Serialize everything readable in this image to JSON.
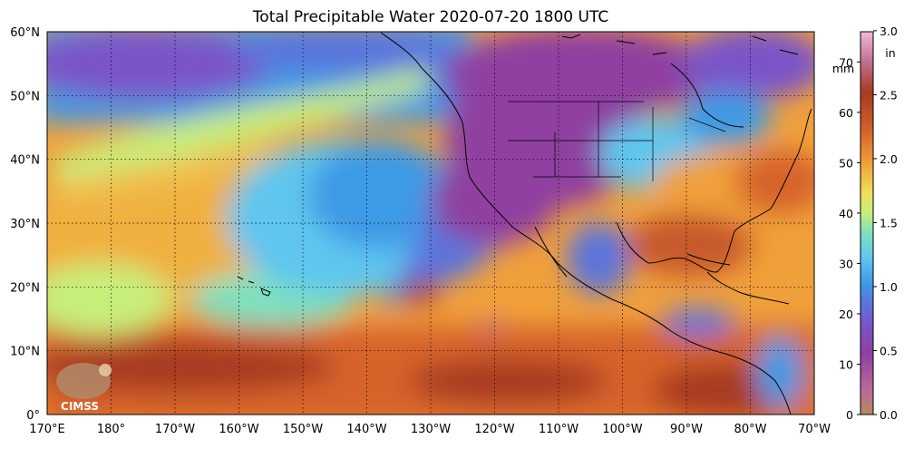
{
  "title": "Total Precipitable Water  2020-07-20 1800 UTC",
  "map": {
    "lon_labels": [
      "170°E",
      "180°",
      "170°W",
      "160°W",
      "150°W",
      "140°W",
      "130°W",
      "120°W",
      "110°W",
      "100°W",
      "90°W",
      "80°W",
      "70°W"
    ],
    "lat_labels": [
      "60°N",
      "50°N",
      "40°N",
      "30°N",
      "20°N",
      "10°N",
      "0°"
    ],
    "lon_range_deg_east": [
      170,
      290
    ],
    "lat_range_deg_north": [
      0,
      60
    ],
    "gridlines": "dotted"
  },
  "colorbar": {
    "mm_unit": "mm",
    "in_unit": "in",
    "mm_ticks": [
      "70",
      "60",
      "50",
      "40",
      "30",
      "20",
      "10",
      "0"
    ],
    "in_ticks": [
      "3.0",
      "2.5",
      "2.0",
      "1.5",
      "1.0",
      "0.5",
      "0.0"
    ],
    "mm_range": [
      0,
      76
    ],
    "stops": [
      {
        "mm": 0,
        "color": "#b88a60"
      },
      {
        "mm": 5,
        "color": "#b86a9c"
      },
      {
        "mm": 12,
        "color": "#8f3fa0"
      },
      {
        "mm": 18,
        "color": "#7a55c8"
      },
      {
        "mm": 22,
        "color": "#5b74dc"
      },
      {
        "mm": 26,
        "color": "#3e9ae6"
      },
      {
        "mm": 31,
        "color": "#5fc6ef"
      },
      {
        "mm": 36,
        "color": "#7ee0c0"
      },
      {
        "mm": 40,
        "color": "#c8ee7a"
      },
      {
        "mm": 44,
        "color": "#f0e05a"
      },
      {
        "mm": 50,
        "color": "#f0a03a"
      },
      {
        "mm": 56,
        "color": "#d6642a"
      },
      {
        "mm": 64,
        "color": "#a83a22"
      },
      {
        "mm": 70,
        "color": "#c07090"
      },
      {
        "mm": 76,
        "color": "#f2b8d8"
      }
    ]
  },
  "logo": {
    "text": "CIMSS"
  }
}
